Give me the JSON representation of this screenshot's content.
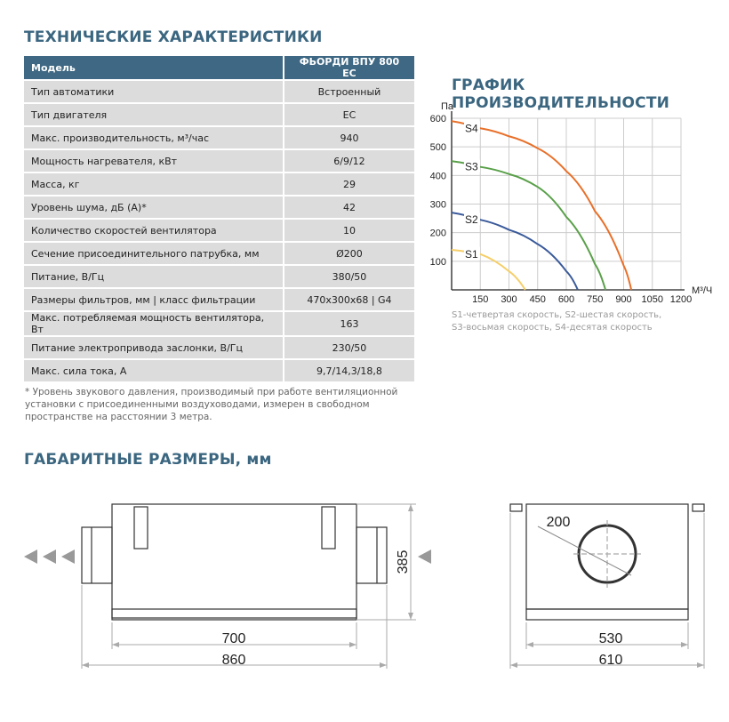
{
  "specs": {
    "title": "ТЕХНИЧЕСКИЕ ХАРАКТЕРИСТИКИ",
    "header": {
      "label": "Модель",
      "value": "ФЬОРДИ ВПУ 800 ЕС"
    },
    "rows": [
      {
        "label": "Тип автоматики",
        "value": "Встроенный"
      },
      {
        "label": "Тип двигателя",
        "value": "ЕС"
      },
      {
        "label": "Макс. производительность, м³/час",
        "value": "940"
      },
      {
        "label": "Мощность нагревателя, кВт",
        "value": "6/9/12"
      },
      {
        "label": "Масса, кг",
        "value": "29"
      },
      {
        "label": "Уровень шума, дБ (А)*",
        "value": "42"
      },
      {
        "label": "Количество скоростей вентилятора",
        "value": "10"
      },
      {
        "label": "Сечение присоединительного патрубка, мм",
        "value": "Ø200"
      },
      {
        "label": "Питание, В/Гц",
        "value": "380/50"
      },
      {
        "label": "Размеры фильтров, мм  |  класс фильтрации",
        "value": "470х300х68  |  G4"
      },
      {
        "label": "Макс. потребляемая мощность вентилятора, Вт",
        "value": "163"
      },
      {
        "label": "Питание электропривода заслонки, В/Гц",
        "value": "230/50"
      },
      {
        "label": "Макс. сила тока, А",
        "value": "9,7/14,3/18,8"
      }
    ],
    "footnote": "* Уровень звукового давления, производимый при работе вентиляционной установки с присоединенными воздуховодами, измерен в свободном пространстве на расстоянии 3 метра."
  },
  "chart_data": {
    "type": "line",
    "title": "ГРАФИК ПРОИЗВОДИТЕЛЬНОСТИ",
    "xlabel": "М³/Ч",
    "ylabel": "Па",
    "xlim": [
      0,
      1200
    ],
    "ylim": [
      0,
      600
    ],
    "xticks": [
      150,
      300,
      450,
      600,
      750,
      900,
      1050,
      1200
    ],
    "yticks": [
      100,
      200,
      300,
      400,
      500,
      600
    ],
    "grid": true,
    "series": [
      {
        "name": "S4",
        "color": "#e8702a",
        "points": [
          [
            0,
            590
          ],
          [
            150,
            565
          ],
          [
            300,
            537
          ],
          [
            450,
            495
          ],
          [
            600,
            415
          ],
          [
            750,
            275
          ],
          [
            900,
            85
          ],
          [
            940,
            0
          ]
        ]
      },
      {
        "name": "S3",
        "color": "#5aa04a",
        "points": [
          [
            0,
            450
          ],
          [
            150,
            430
          ],
          [
            300,
            405
          ],
          [
            450,
            360
          ],
          [
            600,
            255
          ],
          [
            750,
            90
          ],
          [
            805,
            0
          ]
        ]
      },
      {
        "name": "S2",
        "color": "#3a5a9a",
        "points": [
          [
            0,
            270
          ],
          [
            150,
            245
          ],
          [
            300,
            210
          ],
          [
            450,
            160
          ],
          [
            600,
            65
          ],
          [
            660,
            0
          ]
        ]
      },
      {
        "name": "S1",
        "color": "#f5cf6a",
        "points": [
          [
            0,
            140
          ],
          [
            150,
            125
          ],
          [
            300,
            65
          ],
          [
            385,
            0
          ]
        ]
      }
    ],
    "legend_lines": [
      "S1-четвертая скорость, S2-шестая скорость,",
      "S3-восьмая скорость, S4-десятая скорость"
    ]
  },
  "dimensions": {
    "title": "ГАБАРИТНЫЕ РАЗМЕРЫ, мм",
    "side": {
      "inner_length": "700",
      "total_length": "860",
      "height": "385"
    },
    "front": {
      "diameter": "200",
      "inner_width": "530",
      "total_width": "610"
    }
  }
}
